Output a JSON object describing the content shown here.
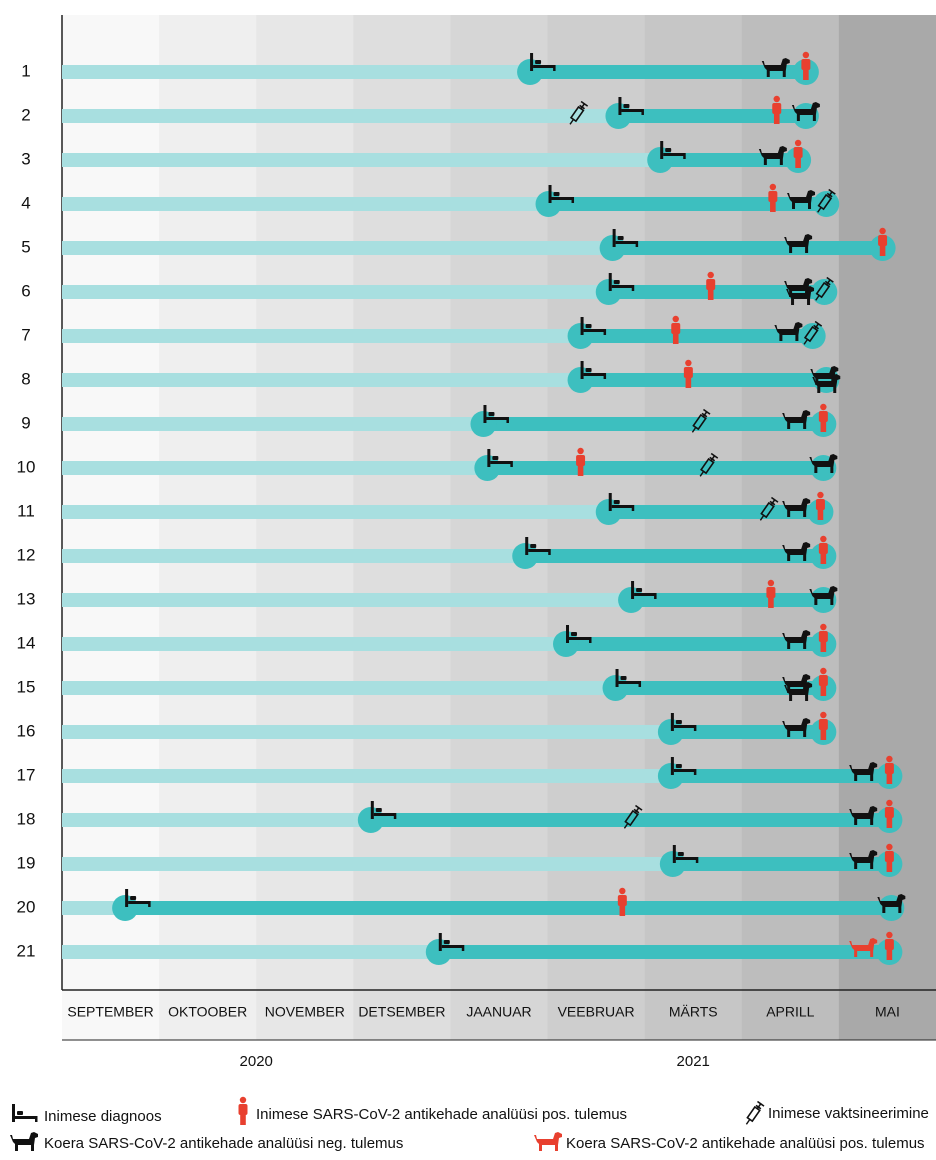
{
  "chart_data": {
    "type": "timeline",
    "months": [
      "SEPTEMBER",
      "OKTOOBER",
      "NOVEMBER",
      "DETSEMBER",
      "JAANUAR",
      "VEEBRUAR",
      "MÄRTS",
      "APRILL",
      "MAI"
    ],
    "column_colors": [
      "#f8f8f8",
      "#efefef",
      "#e7e7e7",
      "#dedede",
      "#d6d6d6",
      "#cecece",
      "#c6c6c6",
      "#bdbdbd",
      "#a9a9a9"
    ],
    "years": [
      "2020",
      "2021"
    ],
    "xlim": [
      0,
      9
    ],
    "bar_color": "#3dbfbf",
    "bar_light_color": "#a8dfe0",
    "human_color": "#e8402f",
    "dog_color": "#111111",
    "legend": {
      "diagnosis": "Inimese diagnoos",
      "human_pos": "Inimese SARS-CoV-2 antikehade analüüsi pos. tulemus",
      "vaccine": "Inimese vaktsineerimine",
      "dog_neg": "Koera SARS-CoV-2 antikehade analüüsi neg. tulemus",
      "dog_pos": "Koera SARS-CoV-2 antikehade analüüsi pos. tulemus"
    },
    "rows": [
      {
        "label": "1",
        "diagnosis": 4.82,
        "dog_neg": [
          7.35
        ],
        "human_pos": [
          7.66
        ],
        "vaccine": [],
        "dog_pos": []
      },
      {
        "label": "2",
        "diagnosis": 5.73,
        "dog_neg": [
          7.66
        ],
        "human_pos": [
          7.36
        ],
        "vaccine": [
          5.32
        ],
        "dog_pos": []
      },
      {
        "label": "3",
        "diagnosis": 6.16,
        "dog_neg": [
          7.32
        ],
        "human_pos": [
          7.58
        ],
        "vaccine": [],
        "dog_pos": []
      },
      {
        "label": "4",
        "diagnosis": 5.01,
        "dog_neg": [
          7.61
        ],
        "human_pos": [
          7.32
        ],
        "vaccine": [
          7.87
        ],
        "dog_pos": []
      },
      {
        "label": "5",
        "diagnosis": 5.67,
        "dog_neg": [
          7.58
        ],
        "human_pos": [
          8.45
        ],
        "vaccine": [],
        "dog_pos": []
      },
      {
        "label": "6",
        "diagnosis": 5.63,
        "dog_neg": [
          7.58,
          7.6
        ],
        "human_pos": [
          6.68
        ],
        "vaccine": [
          7.85
        ],
        "dog_pos": []
      },
      {
        "label": "7",
        "diagnosis": 5.34,
        "dog_neg": [
          7.48
        ],
        "human_pos": [
          6.32
        ],
        "vaccine": [
          7.73
        ],
        "dog_pos": []
      },
      {
        "label": "8",
        "diagnosis": 5.34,
        "dog_neg": [
          7.85,
          7.87
        ],
        "human_pos": [
          6.45
        ],
        "vaccine": [],
        "dog_pos": []
      },
      {
        "label": "9",
        "diagnosis": 4.34,
        "dog_neg": [
          7.56
        ],
        "human_pos": [
          7.84
        ],
        "vaccine": [
          6.58
        ],
        "dog_pos": []
      },
      {
        "label": "10",
        "diagnosis": 4.38,
        "dog_neg": [
          7.84
        ],
        "human_pos": [
          5.34
        ],
        "vaccine": [
          6.66
        ],
        "dog_pos": []
      },
      {
        "label": "11",
        "diagnosis": 5.63,
        "dog_neg": [
          7.56
        ],
        "human_pos": [
          7.81
        ],
        "vaccine": [
          7.28
        ],
        "dog_pos": []
      },
      {
        "label": "12",
        "diagnosis": 4.77,
        "dog_neg": [
          7.56
        ],
        "human_pos": [
          7.84
        ],
        "vaccine": [],
        "dog_pos": []
      },
      {
        "label": "13",
        "diagnosis": 5.86,
        "dog_neg": [
          7.84
        ],
        "human_pos": [
          7.3
        ],
        "vaccine": [],
        "dog_pos": []
      },
      {
        "label": "14",
        "diagnosis": 5.19,
        "dog_neg": [
          7.56
        ],
        "human_pos": [
          7.84
        ],
        "vaccine": [],
        "dog_pos": []
      },
      {
        "label": "15",
        "diagnosis": 5.7,
        "dog_neg": [
          7.56,
          7.58
        ],
        "human_pos": [
          7.84
        ],
        "vaccine": [],
        "dog_pos": []
      },
      {
        "label": "16",
        "diagnosis": 6.27,
        "dog_neg": [
          7.56
        ],
        "human_pos": [
          7.84
        ],
        "vaccine": [],
        "dog_pos": []
      },
      {
        "label": "17",
        "diagnosis": 6.27,
        "dog_neg": [
          8.25
        ],
        "human_pos": [
          8.52
        ],
        "vaccine": [],
        "dog_pos": []
      },
      {
        "label": "18",
        "diagnosis": 3.18,
        "dog_neg": [
          8.25
        ],
        "human_pos": [
          8.52
        ],
        "vaccine": [
          5.88
        ],
        "dog_pos": []
      },
      {
        "label": "19",
        "diagnosis": 6.29,
        "dog_neg": [
          8.25
        ],
        "human_pos": [
          8.52
        ],
        "vaccine": [],
        "dog_pos": []
      },
      {
        "label": "20",
        "diagnosis": 0.65,
        "dog_neg": [
          8.54
        ],
        "human_pos": [
          5.77
        ],
        "vaccine": [],
        "dog_pos": []
      },
      {
        "label": "21",
        "diagnosis": 3.88,
        "dog_neg": [],
        "human_pos": [
          8.52
        ],
        "vaccine": [],
        "dog_pos": [
          8.25
        ]
      }
    ]
  }
}
